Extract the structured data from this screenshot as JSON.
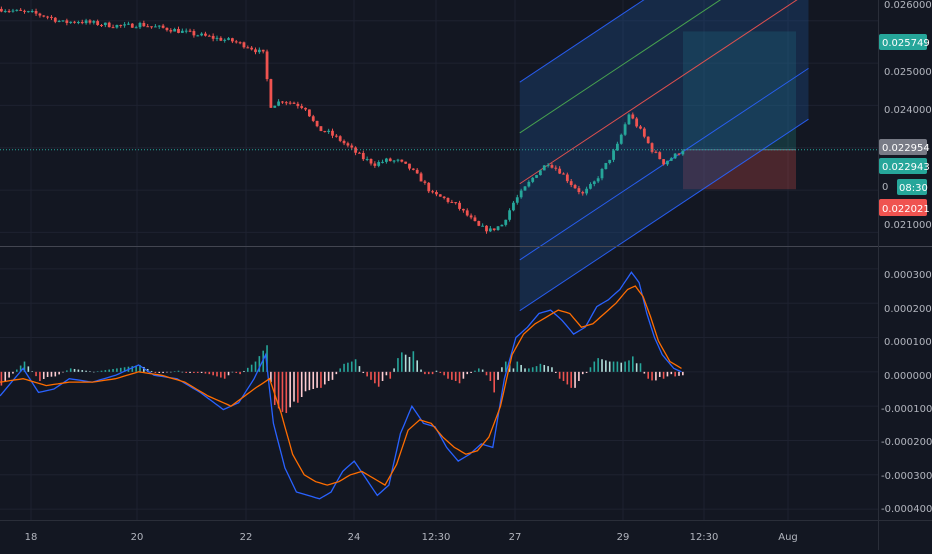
{
  "colors": {
    "background": "#131722",
    "grid": "#1e2230",
    "axis_text": "#b2b5be",
    "up": "#26a69a",
    "down": "#ef5350",
    "macd_line": "#2962ff",
    "signal_line": "#ff6d00",
    "channel_fill": "#1e4e8c",
    "channel_mid": "#4caf50",
    "channel_inner": "#ef5350",
    "current_price_line": "#26a69a",
    "label_dark": "#787b86"
  },
  "chart_data": [
    {
      "type": "candlestick",
      "x_ticks": [
        "18",
        "20",
        "22",
        "24",
        "12:30",
        "27",
        "29",
        "12:30",
        "Aug"
      ],
      "y_ticks": [
        "0.025000",
        "0.024000",
        "0.021000"
      ],
      "y_clipped_top_tick": "0.026000",
      "ylim": [
        0.02075,
        0.02642
      ],
      "price_labels": {
        "take_profit": "0.025749",
        "current_1": "0.022954",
        "current_2": "0.022943",
        "countdown_prefix": "0",
        "countdown": "08:30",
        "stop_loss_prefix": "0",
        "stop_loss": "0.022021"
      },
      "close_path": [
        [
          0,
          0.02628
        ],
        [
          4,
          0.02622
        ],
        [
          8,
          0.02618
        ],
        [
          12,
          0.0261
        ],
        [
          16,
          0.02596
        ],
        [
          20,
          0.02599
        ],
        [
          24,
          0.02594
        ],
        [
          28,
          0.0259
        ],
        [
          32,
          0.02587
        ],
        [
          36,
          0.02592
        ],
        [
          40,
          0.02585
        ],
        [
          44,
          0.0258
        ],
        [
          48,
          0.02572
        ],
        [
          52,
          0.02565
        ],
        [
          56,
          0.02558
        ],
        [
          60,
          0.02552
        ],
        [
          64,
          0.0254
        ],
        [
          68,
          0.02522
        ],
        [
          70,
          0.024
        ],
        [
          73,
          0.02412
        ],
        [
          76,
          0.02405
        ],
        [
          79,
          0.02395
        ],
        [
          82,
          0.02345
        ],
        [
          85,
          0.02335
        ],
        [
          88,
          0.02318
        ],
        [
          91,
          0.02296
        ],
        [
          94,
          0.02275
        ],
        [
          97,
          0.02262
        ],
        [
          100,
          0.0227
        ],
        [
          103,
          0.02268
        ],
        [
          106,
          0.02252
        ],
        [
          109,
          0.02225
        ],
        [
          112,
          0.0219
        ],
        [
          115,
          0.0218
        ],
        [
          118,
          0.02165
        ],
        [
          121,
          0.0214
        ],
        [
          124,
          0.02113
        ],
        [
          127,
          0.02105
        ],
        [
          130,
          0.02118
        ],
        [
          133,
          0.0217
        ],
        [
          136,
          0.02205
        ],
        [
          139,
          0.0224
        ],
        [
          142,
          0.02265
        ],
        [
          145,
          0.02245
        ],
        [
          148,
          0.02215
        ],
        [
          151,
          0.0219
        ],
        [
          154,
          0.02218
        ],
        [
          157,
          0.0226
        ],
        [
          160,
          0.02305
        ],
        [
          163,
          0.0238
        ],
        [
          166,
          0.0234
        ],
        [
          169,
          0.02295
        ],
        [
          172,
          0.02265
        ],
        [
          175,
          0.02282
        ],
        [
          177,
          0.02296
        ]
      ],
      "risk_reward_box": {
        "entry": 0.022954,
        "target": 0.025749,
        "stop": 0.022021
      },
      "channel": {
        "p1": [
          135,
          0.02215
        ],
        "p2": [
          164,
          0.0239
        ],
        "extends_to": 210,
        "offsets": [
          -0.003,
          -0.0018,
          0.0,
          0.0012,
          0.0024
        ]
      }
    },
    {
      "type": "macd",
      "y_ticks": [
        "0.000300",
        "0.000200",
        "0.000100",
        "0.000000",
        "-0.000100",
        "-0.000200",
        "-0.000300",
        "-0.000400"
      ],
      "ylim": [
        -0.00042,
        0.00032
      ],
      "macd_path": [
        [
          0,
          -7e-05
        ],
        [
          6,
          1e-05
        ],
        [
          10,
          -6e-05
        ],
        [
          14,
          -5e-05
        ],
        [
          18,
          -2e-05
        ],
        [
          24,
          -3e-05
        ],
        [
          30,
          -1e-05
        ],
        [
          36,
          2e-05
        ],
        [
          40,
          -1e-05
        ],
        [
          46,
          -2e-05
        ],
        [
          52,
          -6e-05
        ],
        [
          58,
          -0.00011
        ],
        [
          62,
          -9e-05
        ],
        [
          66,
          -2e-05
        ],
        [
          69,
          5e-05
        ],
        [
          71,
          -0.00015
        ],
        [
          74,
          -0.00028
        ],
        [
          77,
          -0.00035
        ],
        [
          80,
          -0.00036
        ],
        [
          83,
          -0.00037
        ],
        [
          86,
          -0.00035
        ],
        [
          89,
          -0.00029
        ],
        [
          92,
          -0.00026
        ],
        [
          95,
          -0.00031
        ],
        [
          98,
          -0.00036
        ],
        [
          101,
          -0.00033
        ],
        [
          104,
          -0.00018
        ],
        [
          107,
          -0.0001
        ],
        [
          110,
          -0.00015
        ],
        [
          113,
          -0.00016
        ],
        [
          116,
          -0.00022
        ],
        [
          119,
          -0.00026
        ],
        [
          122,
          -0.00024
        ],
        [
          125,
          -0.00021
        ],
        [
          128,
          -0.00022
        ],
        [
          131,
          -2e-05
        ],
        [
          134,
          0.0001
        ],
        [
          137,
          0.00013
        ],
        [
          140,
          0.00017
        ],
        [
          143,
          0.00018
        ],
        [
          146,
          0.00015
        ],
        [
          149,
          0.00011
        ],
        [
          152,
          0.00013
        ],
        [
          155,
          0.00019
        ],
        [
          158,
          0.00021
        ],
        [
          161,
          0.00024
        ],
        [
          164,
          0.00029
        ],
        [
          166,
          0.00026
        ],
        [
          168,
          0.00017
        ],
        [
          170,
          0.0001
        ],
        [
          172,
          5e-05
        ],
        [
          175,
          1e-05
        ],
        [
          177,
          0.0
        ]
      ],
      "signal_path": [
        [
          0,
          -3e-05
        ],
        [
          6,
          -2e-05
        ],
        [
          12,
          -4e-05
        ],
        [
          18,
          -3e-05
        ],
        [
          24,
          -3e-05
        ],
        [
          30,
          -2e-05
        ],
        [
          36,
          0.0
        ],
        [
          42,
          -1e-05
        ],
        [
          48,
          -3e-05
        ],
        [
          54,
          -7e-05
        ],
        [
          60,
          -0.0001
        ],
        [
          66,
          -5e-05
        ],
        [
          70,
          -2e-05
        ],
        [
          73,
          -0.00012
        ],
        [
          76,
          -0.00024
        ],
        [
          79,
          -0.0003
        ],
        [
          82,
          -0.00032
        ],
        [
          85,
          -0.00033
        ],
        [
          88,
          -0.00032
        ],
        [
          91,
          -0.0003
        ],
        [
          94,
          -0.00029
        ],
        [
          97,
          -0.00031
        ],
        [
          100,
          -0.00033
        ],
        [
          103,
          -0.00027
        ],
        [
          106,
          -0.00017
        ],
        [
          109,
          -0.00014
        ],
        [
          112,
          -0.00015
        ],
        [
          115,
          -0.00019
        ],
        [
          118,
          -0.00022
        ],
        [
          121,
          -0.00024
        ],
        [
          124,
          -0.00023
        ],
        [
          127,
          -0.00019
        ],
        [
          130,
          -0.0001
        ],
        [
          133,
          5e-05
        ],
        [
          136,
          0.00011
        ],
        [
          139,
          0.00014
        ],
        [
          142,
          0.00016
        ],
        [
          145,
          0.00018
        ],
        [
          148,
          0.00017
        ],
        [
          151,
          0.00013
        ],
        [
          154,
          0.00014
        ],
        [
          157,
          0.00017
        ],
        [
          160,
          0.0002
        ],
        [
          163,
          0.00024
        ],
        [
          165,
          0.00025
        ],
        [
          167,
          0.00022
        ],
        [
          169,
          0.00016
        ],
        [
          171,
          9e-05
        ],
        [
          174,
          3e-05
        ],
        [
          177,
          1e-05
        ]
      ]
    }
  ]
}
